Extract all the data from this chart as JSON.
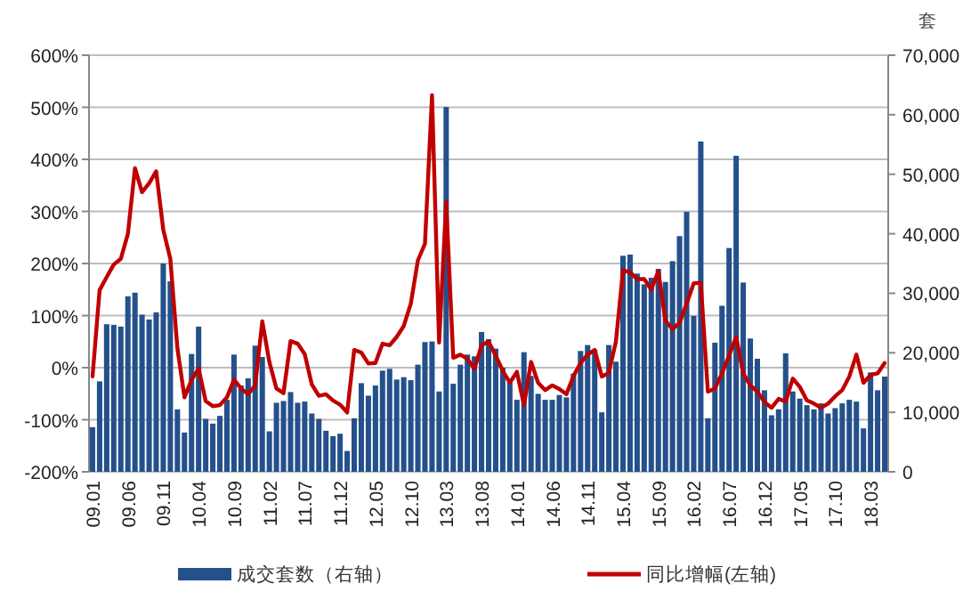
{
  "chart_data": {
    "type": "bar",
    "y2label": "套",
    "legend": "bottom",
    "grid": "y",
    "categories": [
      "09.01",
      null,
      null,
      null,
      null,
      "09.06",
      null,
      null,
      null,
      null,
      "09.11",
      null,
      null,
      null,
      null,
      "10.04",
      null,
      null,
      null,
      null,
      "10.09",
      null,
      null,
      null,
      null,
      "11.02",
      null,
      null,
      null,
      null,
      "11.07",
      null,
      null,
      null,
      null,
      "11.12",
      null,
      null,
      null,
      null,
      "12.05",
      null,
      null,
      null,
      null,
      "12.10",
      null,
      null,
      null,
      null,
      "13.03",
      null,
      null,
      null,
      null,
      "13.08",
      null,
      null,
      null,
      null,
      "14.01",
      null,
      null,
      null,
      null,
      "14.06",
      null,
      null,
      null,
      null,
      "14.11",
      null,
      null,
      null,
      null,
      "15.04",
      null,
      null,
      null,
      null,
      "15.09",
      null,
      null,
      null,
      null,
      "16.02",
      null,
      null,
      null,
      null,
      "16.07",
      null,
      null,
      null,
      null,
      "16.12",
      null,
      null,
      null,
      null,
      "17.05",
      null,
      null,
      null,
      null,
      "17.10",
      null,
      null,
      null,
      null,
      "18.03",
      null,
      null
    ],
    "ylim": [
      -200,
      600
    ],
    "yticks": [
      {
        "value": -200,
        "label": "-200%"
      },
      {
        "value": -100,
        "label": "-100%"
      },
      {
        "value": 0,
        "label": "0%"
      },
      {
        "value": 100,
        "label": "100%"
      },
      {
        "value": 200,
        "label": "200%"
      },
      {
        "value": 300,
        "label": "300%"
      },
      {
        "value": 400,
        "label": "400%"
      },
      {
        "value": 500,
        "label": "500%"
      },
      {
        "value": 600,
        "label": "600%"
      }
    ],
    "y2lim": [
      0,
      70000
    ],
    "y2ticks": [
      0,
      {
        "value": 10000,
        "label": "10,000"
      },
      {
        "value": 20000,
        "label": "20,000"
      },
      {
        "value": 30000,
        "label": "30,000"
      },
      {
        "value": 40000,
        "label": "40,000"
      },
      {
        "value": 50000,
        "label": "50,000"
      },
      {
        "value": 60000,
        "label": "60,000"
      },
      {
        "value": 70000,
        "label": "70,000"
      }
    ],
    "series": [
      {
        "name": "成交套数（右轴）",
        "axis": "y2",
        "color": "#24508c",
        "values": [
          7500,
          15200,
          24800,
          24700,
          24400,
          29500,
          30100,
          26400,
          25600,
          26800,
          35000,
          32000,
          10500,
          6600,
          19800,
          24400,
          8900,
          8100,
          9400,
          12100,
          19700,
          14500,
          15700,
          21200,
          19300,
          6800,
          11600,
          11900,
          13400,
          11600,
          11800,
          9800,
          8900,
          6900,
          6000,
          6400,
          3500,
          9000,
          14900,
          12800,
          14500,
          17000,
          17300,
          15500,
          15900,
          15400,
          18000,
          21800,
          21900,
          13500,
          61300,
          14800,
          18000,
          19700,
          19400,
          23500,
          22300,
          20700,
          17500,
          15000,
          12100,
          20100,
          16100,
          13100,
          12100,
          12100,
          12900,
          12500,
          16500,
          20300,
          21300,
          20500,
          10000,
          21300,
          18500,
          36300,
          36500,
          33300,
          31500,
          32600,
          34100,
          31900,
          35400,
          39600,
          43700,
          26200,
          55500,
          9000,
          21700,
          27900,
          37600,
          53100,
          31800,
          22400,
          19000,
          13700,
          9500,
          10500,
          19900,
          13500,
          12300,
          11200,
          10500,
          11500,
          9800,
          10700,
          11500,
          12100,
          11800,
          7300,
          16700,
          13700,
          16000
        ]
      },
      {
        "name": "同比增幅(左轴)",
        "type": "line",
        "axis": "y",
        "color": "#c00000",
        "marker": "none",
        "values": [
          -17,
          149,
          174,
          198,
          209,
          257,
          383,
          337,
          354,
          377,
          265,
          209,
          37,
          -57,
          -23,
          -2,
          -64,
          -74,
          -72,
          -57,
          -23,
          -40,
          -51,
          -34,
          89,
          11,
          -40,
          -49,
          51,
          46,
          26,
          -32,
          -54,
          -51,
          -63,
          -71,
          -86,
          34,
          29,
          8,
          9,
          46,
          43,
          59,
          80,
          123,
          206,
          238,
          523,
          48,
          318,
          19,
          25,
          17,
          -2,
          43,
          50,
          23,
          -6,
          -29,
          -8,
          -72,
          11,
          -29,
          -43,
          -34,
          -41,
          -51,
          -16,
          9,
          25,
          34,
          -17,
          -10,
          50,
          187,
          183,
          170,
          170,
          150,
          185,
          90,
          74,
          86,
          123,
          162,
          163,
          -46,
          -40,
          -11,
          23,
          59,
          -11,
          -34,
          -46,
          -66,
          -77,
          -60,
          -65,
          -21,
          -37,
          -63,
          -69,
          -77,
          -69,
          -55,
          -43,
          -17,
          25,
          -29,
          -14,
          -11,
          9
        ]
      }
    ]
  }
}
